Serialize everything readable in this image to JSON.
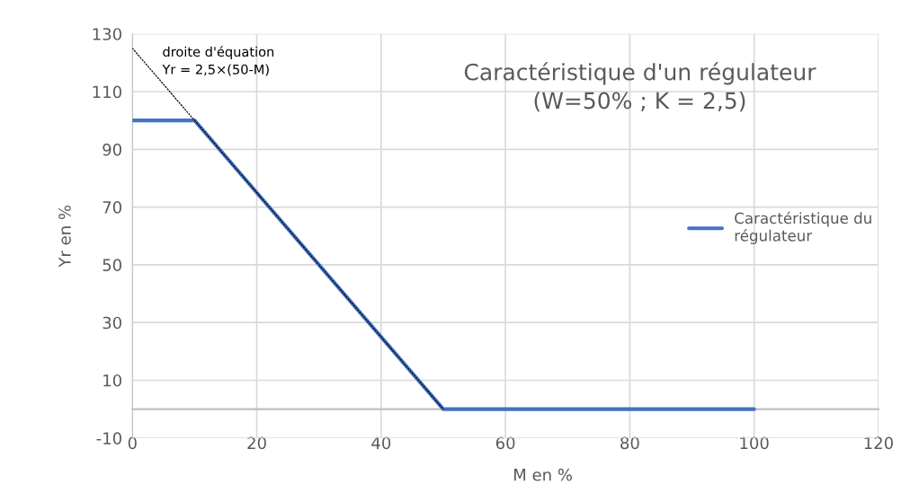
{
  "chart_data": {
    "type": "line",
    "title": "Caractéristique d'un régulateur\n(W=50% ; K = 2,5)",
    "xlabel": "M en %",
    "ylabel": "Yr en %",
    "annotations": [
      "droite d'équation\nYr = 2,5×(50-M)"
    ],
    "x": [
      0,
      10,
      50,
      100
    ],
    "series": [
      {
        "name": "Caractéristique du\nrégulateur",
        "color": "#4472c4",
        "values": [
          100,
          100,
          0,
          0
        ]
      },
      {
        "type": "line",
        "x": [
          0,
          50
        ],
        "color": "#000000",
        "line_style": "dotted",
        "values": [
          125,
          0
        ]
      }
    ],
    "xlim": [
      0,
      120
    ],
    "xticks": [
      0,
      20,
      40,
      60,
      80,
      100,
      120
    ],
    "ylim": [
      -10,
      130
    ],
    "yticks": [
      -10,
      10,
      30,
      50,
      70,
      90,
      110,
      130
    ],
    "grid": true,
    "legend": "right"
  }
}
